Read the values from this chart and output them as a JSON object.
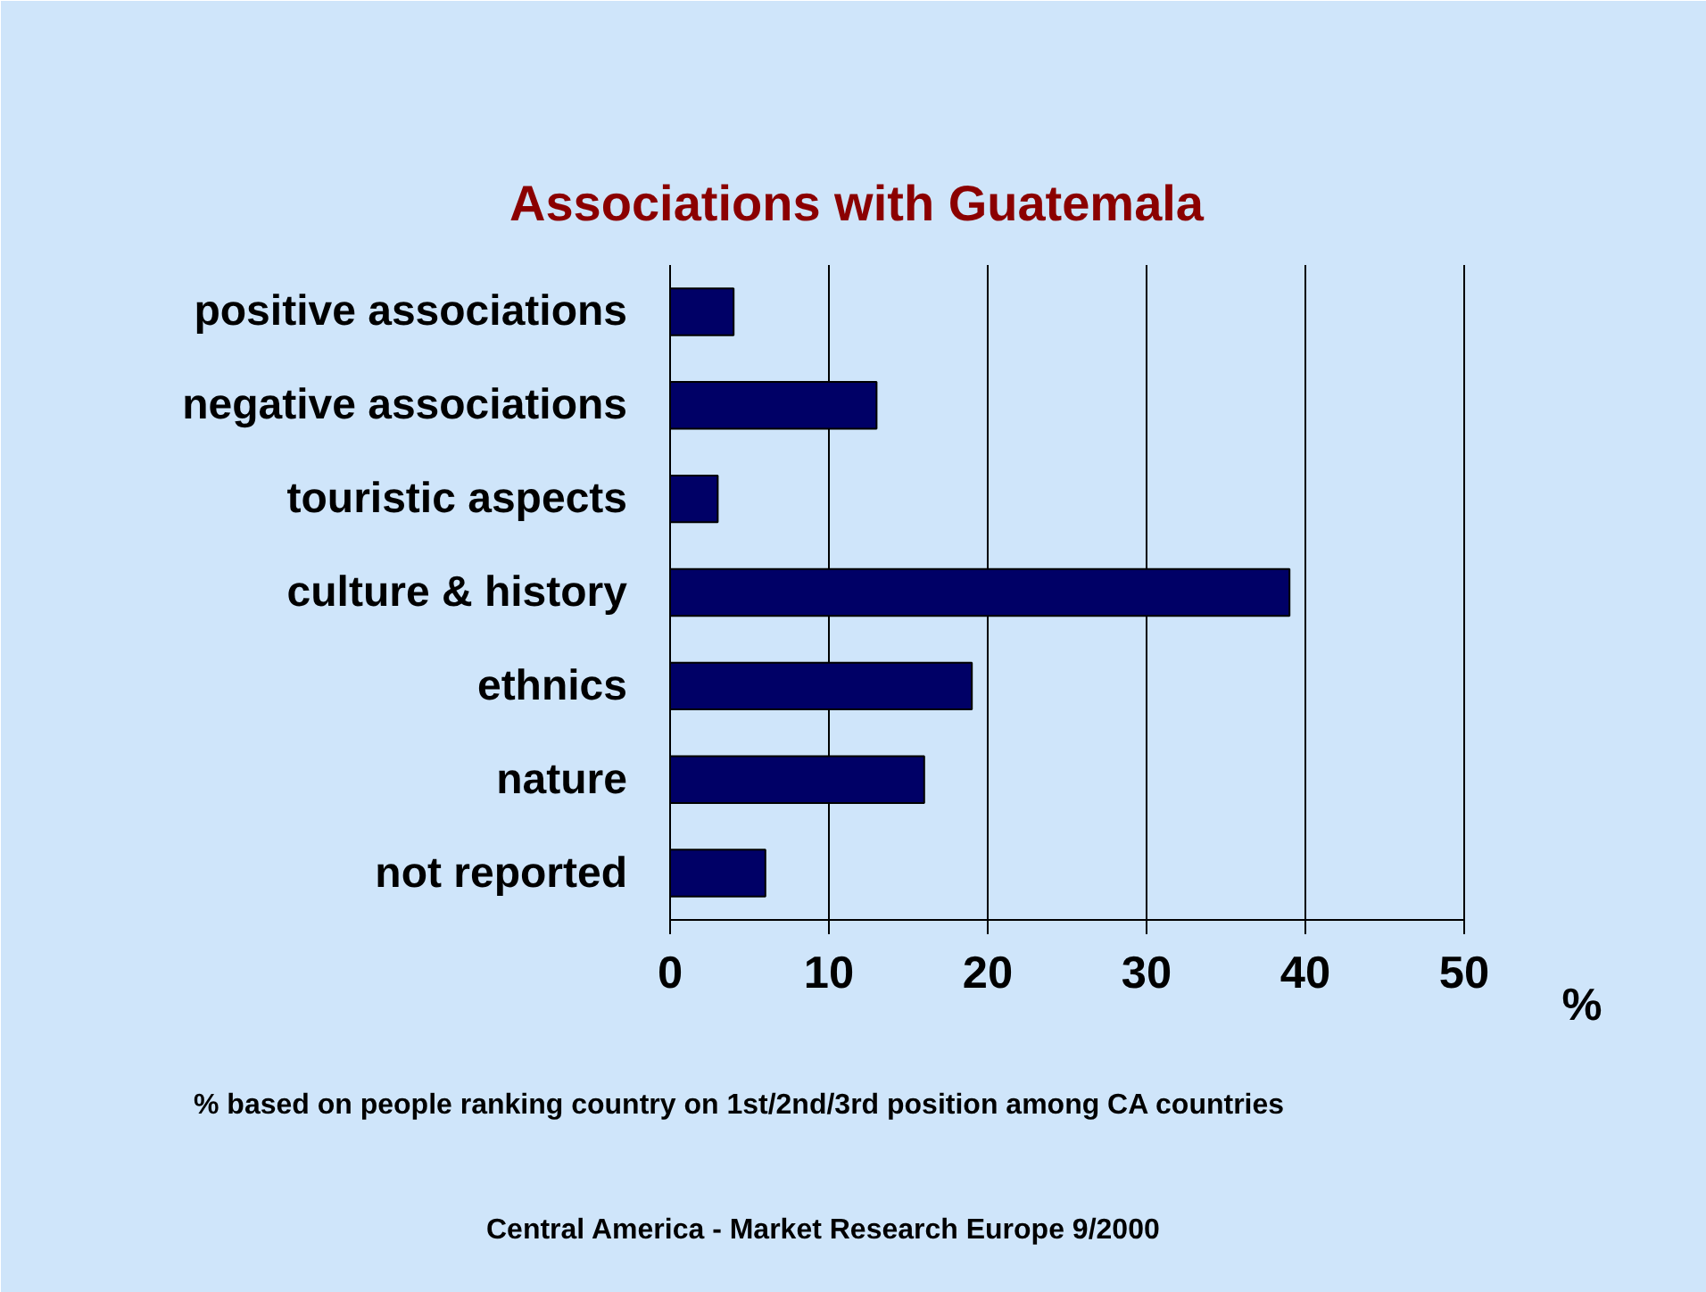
{
  "chart_data": {
    "type": "bar",
    "orientation": "horizontal",
    "title": "Associations with Guatemala",
    "xlabel": "%",
    "categories": [
      "positive associations",
      "negative associations",
      "touristic aspects",
      "culture & history",
      "ethnics",
      "nature",
      "not reported"
    ],
    "values": [
      4,
      13,
      3,
      39,
      19,
      16,
      6
    ],
    "color": "#000066",
    "xlim": [
      0,
      50
    ],
    "xticks": [
      0,
      10,
      20,
      30,
      40,
      50
    ],
    "grid": "x",
    "annotations": [
      "% based on people ranking country on 1st/2nd/3rd position among CA countries",
      "Central America - Market Research Europe 9/2000"
    ]
  }
}
